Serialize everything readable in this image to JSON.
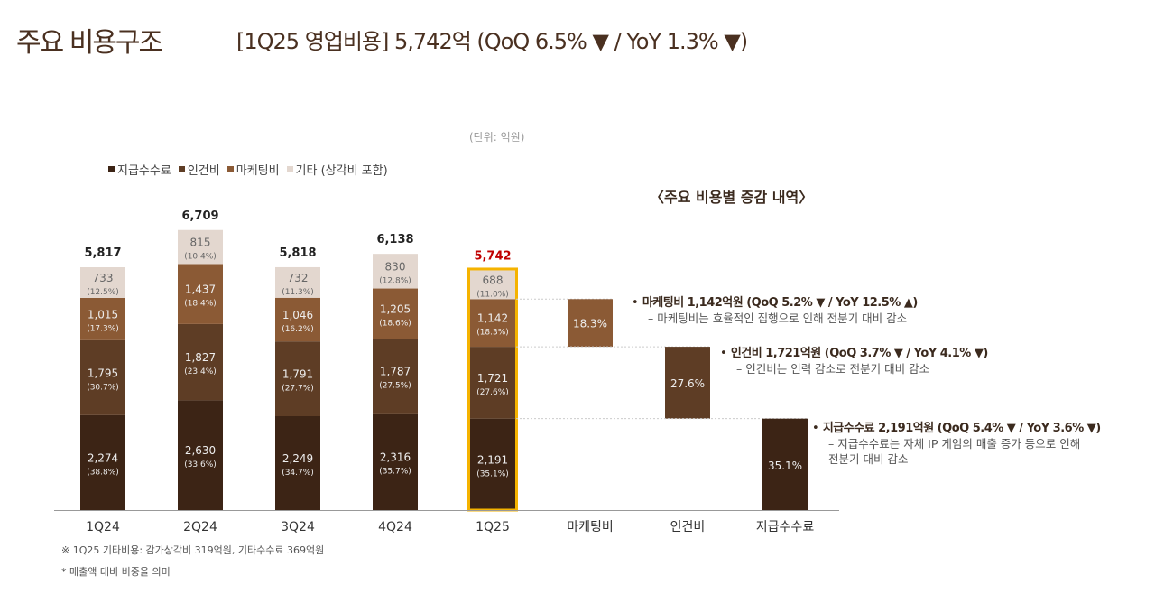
{
  "title": "주요 비용구조",
  "headline": "[1Q25 영업비용] 5,742억 (QoQ 6.5% ▼  / YoY 1.3% ▼)",
  "unit": "(단위: 억원)",
  "breakdown_title": "〈주요 비용별 증감 내역〉",
  "colors": {
    "fees": "#3c2415",
    "personnel": "#5e3d25",
    "marketing": "#8b5a35",
    "other": "#e3d7cf",
    "highlight": "#f5b300",
    "highlight_total": "#c00000"
  },
  "chart_data": {
    "type": "stacked-bar",
    "categories": [
      "1Q24",
      "2Q24",
      "3Q24",
      "4Q24",
      "1Q25"
    ],
    "totals": [
      "5,817",
      "6,709",
      "5,818",
      "6,138",
      "5,742"
    ],
    "total_values": [
      5817,
      6709,
      5818,
      6138,
      5742
    ],
    "highlight_category": "1Q25",
    "legend": [
      "지급수수료",
      "인건비",
      "마케팅비",
      "기타 (상각비 포함)"
    ],
    "legend_placement": "top-left",
    "series": [
      {
        "name": "지급수수료",
        "color_key": "fees",
        "values": [
          2274,
          2630,
          2249,
          2316,
          2191
        ],
        "labels": [
          "2,274",
          "2,630",
          "2,249",
          "2,316",
          "2,191"
        ],
        "pct": [
          "(38.8%)",
          "(33.6%)",
          "(34.7%)",
          "(35.7%)",
          "(35.1%)"
        ]
      },
      {
        "name": "인건비",
        "color_key": "personnel",
        "values": [
          1795,
          1827,
          1791,
          1787,
          1721
        ],
        "labels": [
          "1,795",
          "1,827",
          "1,791",
          "1,787",
          "1,721"
        ],
        "pct": [
          "(30.7%)",
          "(23.4%)",
          "(27.7%)",
          "(27.5%)",
          "(27.6%)"
        ]
      },
      {
        "name": "마케팅비",
        "color_key": "marketing",
        "values": [
          1015,
          1437,
          1046,
          1205,
          1142
        ],
        "labels": [
          "1,015",
          "1,437",
          "1,046",
          "1,205",
          "1,142"
        ],
        "pct": [
          "(17.3%)",
          "(18.4%)",
          "(16.2%)",
          "(18.6%)",
          "(18.3%)"
        ]
      },
      {
        "name": "기타 (상각비 포함)",
        "color_key": "other",
        "values": [
          733,
          815,
          732,
          830,
          688
        ],
        "labels": [
          "733",
          "815",
          "732",
          "830",
          "688"
        ],
        "pct": [
          "(12.5%)",
          "(10.4%)",
          "(11.3%)",
          "(12.8%)",
          "(11.0%)"
        ]
      }
    ],
    "waterfall": [
      {
        "category": "마케팅비",
        "label": "18.3%",
        "series": 2
      },
      {
        "category": "인건비",
        "label": "27.6%",
        "series": 1
      },
      {
        "category": "지급수수료",
        "label": "35.1%",
        "series": 0
      }
    ]
  },
  "bullets": [
    {
      "head": "마케팅비 1,142억원 (QoQ 5.2% ▼ / YoY 12.5% ▲)",
      "lines": [
        "– 마케팅비는 효율적인 집행으로 인해 전분기 대비 감소"
      ]
    },
    {
      "head": "인건비 1,721억원 (QoQ 3.7% ▼ / YoY 4.1% ▼)",
      "lines": [
        "– 인건비는 인력 감소로 전분기 대비 감소"
      ]
    },
    {
      "head": "지급수수료 2,191억원 (QoQ 5.4% ▼ / YoY 3.6% ▼)",
      "lines": [
        "– 지급수수료는 자체 IP 게임의 매출 증가 등으로 인해",
        "전분기 대비 감소"
      ]
    }
  ],
  "notes": [
    "※ 1Q25 기타비용: 감가상각비 319억원, 기타수수료 369억원",
    "* 매출액 대비 비중을 의미"
  ]
}
